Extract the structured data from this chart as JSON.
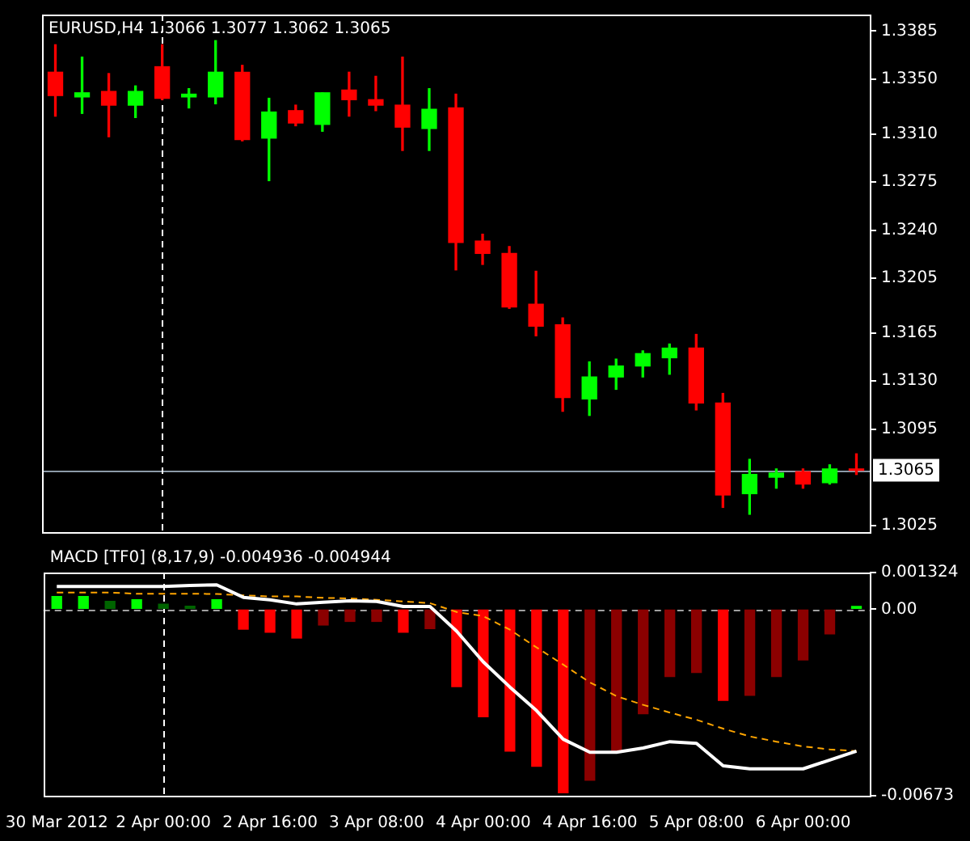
{
  "chart_data": [
    {
      "type": "candlestick",
      "title": "EURUSD,H4 1.3066 1.3077 1.3062 1.3065",
      "categories": [
        "30 Mar 2012",
        null,
        null,
        null,
        "2 Apr 00:00",
        null,
        null,
        null,
        "2 Apr 16:00",
        null,
        null,
        null,
        "3 Apr 08:00",
        null,
        null,
        null,
        "4 Apr 00:00",
        null,
        null,
        null,
        "4 Apr 16:00",
        null,
        null,
        null,
        "5 Apr 08:00",
        null,
        null,
        null,
        "6 Apr 00:00",
        null,
        null
      ],
      "ohlc": [
        [
          1.3355,
          1.3375,
          1.3323,
          1.3338
        ],
        [
          1.3337,
          1.3366,
          1.3325,
          1.334
        ],
        [
          1.3341,
          1.3354,
          1.3308,
          1.3331
        ],
        [
          1.3331,
          1.3345,
          1.3322,
          1.3341
        ],
        [
          1.3359,
          1.3375,
          1.3335,
          1.3336
        ],
        [
          1.3337,
          1.3343,
          1.3329,
          1.3339
        ],
        [
          1.3337,
          1.3378,
          1.3332,
          1.3355
        ],
        [
          1.3355,
          1.336,
          1.3305,
          1.3306
        ],
        [
          1.3307,
          1.3336,
          1.3276,
          1.3326
        ],
        [
          1.3327,
          1.3331,
          1.3316,
          1.3318
        ],
        [
          1.3317,
          1.334,
          1.3312,
          1.334
        ],
        [
          1.3342,
          1.3355,
          1.3323,
          1.3335
        ],
        [
          1.3335,
          1.3352,
          1.3327,
          1.3331
        ],
        [
          1.3331,
          1.3366,
          1.3298,
          1.3315
        ],
        [
          1.3314,
          1.3343,
          1.3298,
          1.3328
        ],
        [
          1.3329,
          1.3339,
          1.3211,
          1.3231
        ],
        [
          1.3232,
          1.3237,
          1.3215,
          1.3223
        ],
        [
          1.3223,
          1.3228,
          1.3183,
          1.3184
        ],
        [
          1.3186,
          1.321,
          1.3163,
          1.317
        ],
        [
          1.3171,
          1.3176,
          1.3108,
          1.3118
        ],
        [
          1.3117,
          1.3144,
          1.3105,
          1.3133
        ],
        [
          1.3133,
          1.3146,
          1.3124,
          1.3141
        ],
        [
          1.3141,
          1.3152,
          1.3133,
          1.315
        ],
        [
          1.3147,
          1.3157,
          1.3135,
          1.3154
        ],
        [
          1.3154,
          1.3164,
          1.3109,
          1.3114
        ],
        [
          1.3114,
          1.3121,
          1.3038,
          1.3047
        ],
        [
          1.3048,
          1.3073,
          1.3033,
          1.3062
        ],
        [
          1.306,
          1.3066,
          1.3052,
          1.3063
        ],
        [
          1.3064,
          1.3066,
          1.3052,
          1.3055
        ],
        [
          1.3056,
          1.3069,
          1.3055,
          1.3066
        ],
        [
          1.3066,
          1.3077,
          1.3062,
          1.3065
        ]
      ],
      "colors": [
        "#ff0000",
        "#00ff00",
        "#ff0000",
        "#00ff00",
        "#ff0000",
        "#00ff00",
        "#00ff00",
        "#ff0000",
        "#00ff00",
        "#ff0000",
        "#00ff00",
        "#ff0000",
        "#ff0000",
        "#ff0000",
        "#00ff00",
        "#ff0000",
        "#ff0000",
        "#ff0000",
        "#ff0000",
        "#ff0000",
        "#00ff00",
        "#00ff00",
        "#00ff00",
        "#00ff00",
        "#ff0000",
        "#ff0000",
        "#00ff00",
        "#00ff00",
        "#ff0000",
        "#00ff00",
        "#ff0000"
      ],
      "ylim": [
        1.302,
        1.3397
      ],
      "yticks": [
        1.3385,
        {
          "value": 1.335,
          "label": "1.3350"
        },
        {
          "value": 1.331,
          "label": "1.3310"
        },
        1.3275,
        {
          "value": 1.324,
          "label": "1.3240"
        },
        1.3205,
        1.3165,
        {
          "value": 1.313,
          "label": "1.3130"
        },
        1.3095,
        1.3025
      ],
      "tick_labels": "y",
      "ref_lines": [
        {
          "axis": "y",
          "value": 1.3065,
          "label": "1.3065",
          "color": "#8c9aa8",
          "line_style": "solid"
        },
        {
          "axis": "x",
          "value": "2 Apr 00:00",
          "label": null,
          "color": "#ffffff",
          "line_style": "dashed"
        }
      ]
    },
    {
      "type": "bar",
      "title": "MACD [TF0] (8,17,9) -0.004936 -0.004944",
      "categories": [
        "30 Mar 2012",
        null,
        null,
        null,
        "2 Apr 00:00",
        null,
        null,
        null,
        "2 Apr 16:00",
        null,
        null,
        null,
        "3 Apr 08:00",
        null,
        null,
        null,
        "4 Apr 00:00",
        null,
        null,
        null,
        "4 Apr 16:00",
        null,
        null,
        null,
        "5 Apr 08:00",
        null,
        null,
        null,
        "6 Apr 00:00",
        null,
        null
      ],
      "series": [
        {
          "type": "bar",
          "values": [
            0.00046,
            0.00046,
            0.00028,
            0.00034,
            0.00018,
            0.00011,
            0.00034,
            -0.00072,
            -0.00083,
            -0.00104,
            -0.00057,
            -0.00044,
            -0.00044,
            -0.00083,
            -0.0007,
            -0.00279,
            -0.00388,
            -0.00512,
            -0.00567,
            -0.00662,
            -0.00617,
            -0.00512,
            -0.00377,
            -0.00243,
            -0.00228,
            -0.00329,
            -0.00311,
            -0.00243,
            -0.00183,
            -0.00089,
            0.0001
          ],
          "colors": [
            "#00ff00",
            "#00ff00",
            "#006400",
            "#00ff00",
            "#006400",
            "#006400",
            "#00ff00",
            "#ff0000",
            "#ff0000",
            "#ff0000",
            "#8b0000",
            "#8b0000",
            "#8b0000",
            "#ff0000",
            "#8b0000",
            "#ff0000",
            "#ff0000",
            "#ff0000",
            "#ff0000",
            "#ff0000",
            "#8b0000",
            "#8b0000",
            "#8b0000",
            "#8b0000",
            "#8b0000",
            "#ff0000",
            "#8b0000",
            "#8b0000",
            "#8b0000",
            "#8b0000",
            "#00ff00"
          ]
        },
        {
          "type": "line",
          "color": "#ffffff",
          "line_style": "solid",
          "values": [
            0.00082,
            0.00082,
            0.00082,
            0.00082,
            0.00082,
            0.00086,
            0.00088,
            0.00043,
            0.00034,
            0.00019,
            0.00025,
            0.0003,
            0.00028,
            0.0001,
            0.0001,
            -0.00079,
            -0.0019,
            -0.00281,
            -0.00366,
            -0.00469,
            -0.00516,
            -0.00516,
            -0.00501,
            -0.00478,
            -0.00484,
            -0.00565,
            -0.00576,
            -0.00576,
            -0.00576,
            -0.00544,
            -0.00512
          ]
        },
        {
          "type": "line",
          "color": "#ffa500",
          "line_style": "dashed",
          "values": [
            0.0006,
            0.0006,
            0.0006,
            0.00056,
            0.00056,
            0.00056,
            0.00055,
            0.0005,
            0.00046,
            0.00046,
            0.00041,
            0.00039,
            0.00034,
            0.00028,
            0.00022,
            -0.0001,
            -0.00025,
            -0.00074,
            -0.00138,
            -0.002,
            -0.00264,
            -0.00314,
            -0.00345,
            -0.00373,
            -0.00399,
            -0.00431,
            -0.00459,
            -0.00478,
            -0.00495,
            -0.00506,
            -0.00512
          ]
        }
      ],
      "ylim": [
        -0.00673,
        0.001324
      ],
      "yticks": [
        0.001324,
        {
          "value": 0,
          "label": "0.00"
        },
        -0.00673
      ],
      "ref_lines": [
        {
          "axis": "y",
          "value": 0,
          "label": null,
          "color": "#a0a0a0",
          "line_style": "dashed"
        },
        {
          "axis": "x",
          "value": "2 Apr 00:00",
          "label": null,
          "color": "#ffffff",
          "line_style": "dashed"
        }
      ]
    }
  ]
}
